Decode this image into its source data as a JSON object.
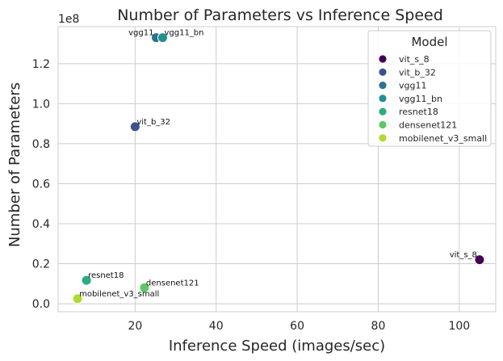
{
  "chart_data": {
    "type": "scatter",
    "title": "Number of Parameters vs Inference Speed",
    "xlabel": "Inference Speed (images/sec)",
    "ylabel": "Number of Parameters",
    "y_offset_label": "1e8",
    "xlim": [
      1,
      109
    ],
    "ylim": [
      -0.04,
      1.385
    ],
    "x_ticks": [
      20,
      40,
      60,
      80,
      100
    ],
    "x_tick_labels": [
      "20",
      "40",
      "60",
      "80",
      "100"
    ],
    "y_ticks": [
      0.0,
      0.2,
      0.4,
      0.6,
      0.8,
      1.0,
      1.2
    ],
    "y_tick_labels": [
      "0.0",
      "0.2",
      "0.4",
      "0.6",
      "0.8",
      "1.0",
      "1.2"
    ],
    "grid": true,
    "legend_title": "Model",
    "legend_position": "top-right",
    "points": [
      {
        "name": "vit_s_8",
        "x": 105,
        "y": 0.22,
        "color": "#440154",
        "label_side": "left"
      },
      {
        "name": "vit_b_32",
        "x": 20.0,
        "y": 0.885,
        "color": "#3b528b",
        "label_side": "right"
      },
      {
        "name": "vgg11",
        "x": 25.2,
        "y": 1.33,
        "color": "#2c728e",
        "label_side": "left"
      },
      {
        "name": "vgg11_bn",
        "x": 26.8,
        "y": 1.33,
        "color": "#21918c",
        "label_side": "right"
      },
      {
        "name": "resnet18",
        "x": 8.0,
        "y": 0.117,
        "color": "#27ad81",
        "label_side": "right"
      },
      {
        "name": "densenet121",
        "x": 22.3,
        "y": 0.08,
        "color": "#5ec962",
        "label_side": "right"
      },
      {
        "name": "mobilenet_v3_small",
        "x": 5.8,
        "y": 0.025,
        "color": "#addc30",
        "label_side": "right"
      }
    ]
  }
}
